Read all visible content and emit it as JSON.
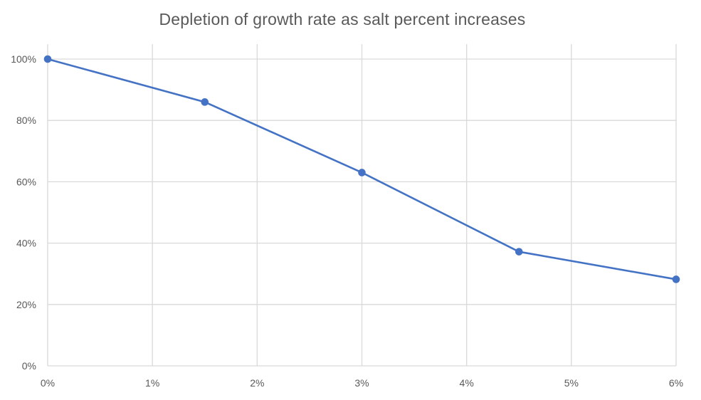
{
  "chart_data": {
    "type": "line",
    "title": "Depletion of growth rate as salt percent increases",
    "xlabel": "",
    "ylabel": "",
    "x_axis": {
      "min": 0,
      "max": 6,
      "ticks": [
        0,
        1,
        2,
        3,
        4,
        5,
        6
      ],
      "tick_labels": [
        "0%",
        "1%",
        "2%",
        "3%",
        "4%",
        "5%",
        "6%"
      ]
    },
    "y_axis": {
      "min": 0,
      "max": 100,
      "ticks": [
        0,
        20,
        40,
        60,
        80,
        100
      ],
      "tick_labels": [
        "0%",
        "20%",
        "40%",
        "60%",
        "80%",
        "100%"
      ]
    },
    "grid": true,
    "legend": "none",
    "series": [
      {
        "color": "#4472C4",
        "points": [
          {
            "x": 0,
            "y": 100
          },
          {
            "x": 1.5,
            "y": 86
          },
          {
            "x": 3,
            "y": 63
          },
          {
            "x": 4.5,
            "y": 37.2
          },
          {
            "x": 6,
            "y": 28.2
          }
        ]
      }
    ],
    "colors": {
      "line": "#4472C4",
      "grid": "#d9d9d9",
      "text": "#595959"
    }
  }
}
